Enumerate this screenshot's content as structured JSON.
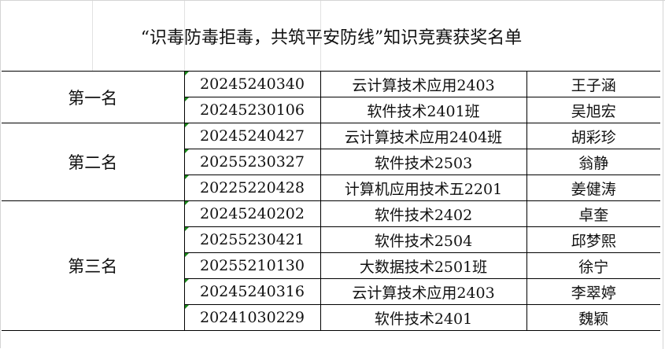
{
  "title": "“识毒防毒拒毒，共筑平安防线”知识竞赛获奖名单",
  "groups": [
    {
      "rank": "第一名",
      "rows": [
        {
          "id": "20245240340",
          "class": "云计算技术应用2403",
          "name": "王子涵"
        },
        {
          "id": "20245230106",
          "class": "软件技术2401班",
          "name": "吴旭宏"
        }
      ]
    },
    {
      "rank": "第二名",
      "rows": [
        {
          "id": "20245240427",
          "class": "云计算技术应用2404班",
          "name": "胡彩珍"
        },
        {
          "id": "20255230327",
          "class": "软件技术2503",
          "name": "翁静"
        },
        {
          "id": "20225220428",
          "class": "计算机应用技术五2201",
          "name": "姜健涛"
        }
      ]
    },
    {
      "rank": "第三名",
      "rows": [
        {
          "id": "20245240202",
          "class": "软件技术2402",
          "name": "卓奎"
        },
        {
          "id": "20255230421",
          "class": "软件技术2504",
          "name": "邱梦熙"
        },
        {
          "id": "20255210130",
          "class": "大数据技术2501班",
          "name": "徐宁"
        },
        {
          "id": "20245240316",
          "class": "云计算技术应用2403",
          "name": "李翠婷"
        },
        {
          "id": "20241030229",
          "class": "软件技术2401",
          "name": "魏颖"
        }
      ]
    }
  ]
}
